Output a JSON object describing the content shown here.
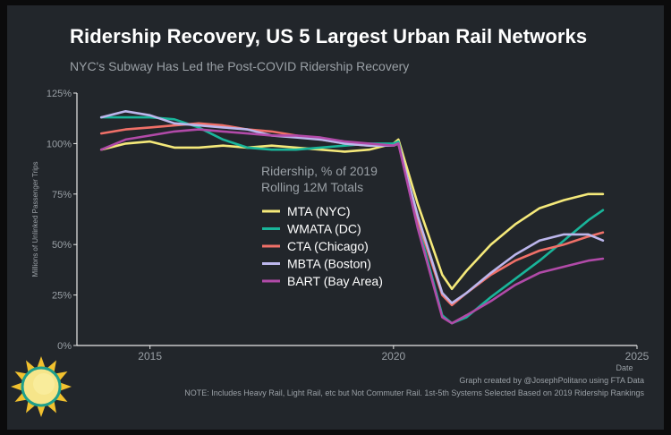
{
  "header": {
    "title": "Ridership Recovery, US 5 Largest Urban Rail Networks",
    "subtitle": "NYC's Subway Has Led the Post-COVID Ridership Recovery"
  },
  "footer": {
    "credit": "Graph created by @JosephPolitano using FTA Data",
    "note": "NOTE: Includes Heavy Rail, Light Rail, etc but Not Commuter Rail. 1st-5th Systems Selected Based on 2019 Ridership Rankings"
  },
  "logo_icon": "sun-logo-icon",
  "chart_data": {
    "type": "line",
    "title": "Ridership Recovery, US 5 Largest Urban Rail Networks",
    "subtitle": "NYC's Subway Has Led the Post-COVID Ridership Recovery",
    "xlabel": "Date",
    "ylabel": "Millions of Unlinked Passenger Trips",
    "xlim": [
      2013.5,
      2025
    ],
    "ylim": [
      0,
      125
    ],
    "x_ticks": [
      2015,
      2020,
      2025
    ],
    "x_tick_labels": [
      "2015",
      "2020",
      "2025"
    ],
    "y_ticks": [
      0,
      25,
      50,
      75,
      100,
      125
    ],
    "y_tick_labels": [
      "0%",
      "25%",
      "50%",
      "75%",
      "100%",
      "125%"
    ],
    "grid": false,
    "legend": {
      "title_lines": [
        "Ridership, % of 2019",
        "Rolling 12M Totals"
      ],
      "placement": "center"
    },
    "series": [
      {
        "name": "MTA (NYC)",
        "color": "#f5e97a",
        "x": [
          2014.0,
          2014.5,
          2015.0,
          2015.5,
          2016.0,
          2016.5,
          2017.0,
          2017.5,
          2018.0,
          2018.5,
          2019.0,
          2019.5,
          2020.0,
          2020.1,
          2020.5,
          2021.0,
          2021.2,
          2021.5,
          2022.0,
          2022.5,
          2023.0,
          2023.5,
          2024.0,
          2024.3
        ],
        "y": [
          97,
          100,
          101,
          98,
          98,
          99,
          98,
          99,
          98,
          97,
          96,
          97,
          100,
          102,
          70,
          35,
          28,
          37,
          50,
          60,
          68,
          72,
          75,
          75
        ]
      },
      {
        "name": "WMATA (DC)",
        "color": "#19b59a",
        "x": [
          2014.0,
          2014.5,
          2015.0,
          2015.5,
          2016.0,
          2016.5,
          2017.0,
          2017.5,
          2018.0,
          2018.5,
          2019.0,
          2019.5,
          2020.0,
          2020.1,
          2020.5,
          2021.0,
          2021.2,
          2021.5,
          2022.0,
          2022.5,
          2023.0,
          2023.5,
          2024.0,
          2024.3
        ],
        "y": [
          113,
          113,
          113,
          112,
          108,
          102,
          98,
          97,
          97,
          98,
          99,
          100,
          100,
          101,
          60,
          15,
          11,
          14,
          24,
          33,
          42,
          52,
          62,
          67
        ]
      },
      {
        "name": "CTA (Chicago)",
        "color": "#f07068",
        "x": [
          2014.0,
          2014.5,
          2015.0,
          2015.5,
          2016.0,
          2016.5,
          2017.0,
          2017.5,
          2018.0,
          2018.5,
          2019.0,
          2019.5,
          2020.0,
          2020.1,
          2020.5,
          2021.0,
          2021.2,
          2021.5,
          2022.0,
          2022.5,
          2023.0,
          2023.5,
          2024.0,
          2024.3
        ],
        "y": [
          105,
          107,
          108,
          109,
          110,
          109,
          107,
          106,
          104,
          102,
          100,
          99,
          99,
          100,
          62,
          25,
          20,
          26,
          35,
          42,
          47,
          50,
          54,
          56
        ]
      },
      {
        "name": "MBTA (Boston)",
        "color": "#bcb6ec",
        "x": [
          2014.0,
          2014.5,
          2015.0,
          2015.5,
          2016.0,
          2016.5,
          2017.0,
          2017.5,
          2018.0,
          2018.5,
          2019.0,
          2019.5,
          2020.0,
          2020.1,
          2020.5,
          2021.0,
          2021.2,
          2021.5,
          2022.0,
          2022.5,
          2023.0,
          2023.5,
          2024.0,
          2024.3
        ],
        "y": [
          113,
          116,
          114,
          110,
          109,
          108,
          107,
          104,
          103,
          102,
          100,
          99,
          99,
          100,
          64,
          26,
          21,
          26,
          36,
          45,
          52,
          55,
          55,
          52
        ]
      },
      {
        "name": "BART (Bay Area)",
        "color": "#b14aa8",
        "x": [
          2014.0,
          2014.5,
          2015.0,
          2015.5,
          2016.0,
          2016.5,
          2017.0,
          2017.5,
          2018.0,
          2018.5,
          2019.0,
          2019.5,
          2020.0,
          2020.1,
          2020.5,
          2021.0,
          2021.2,
          2021.5,
          2022.0,
          2022.5,
          2023.0,
          2023.5,
          2024.0,
          2024.3
        ],
        "y": [
          97,
          102,
          104,
          106,
          107,
          106,
          105,
          104,
          104,
          103,
          101,
          100,
          99,
          100,
          58,
          14,
          11,
          15,
          22,
          30,
          36,
          39,
          42,
          43
        ]
      }
    ]
  }
}
